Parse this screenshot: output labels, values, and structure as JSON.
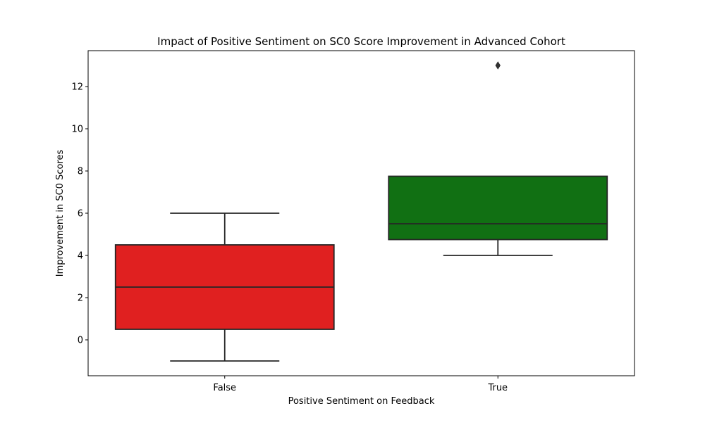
{
  "chart_data": {
    "type": "box",
    "title": "Impact of Positive Sentiment on SC0 Score Improvement in Advanced Cohort",
    "xlabel": "Positive Sentiment on Feedback",
    "ylabel": "Improvement in SC0 Scores",
    "categories": [
      "False",
      "True"
    ],
    "ylim": [
      -1.7,
      13.7
    ],
    "yticks": [
      0,
      2,
      4,
      6,
      8,
      10,
      12
    ],
    "grid": false,
    "boxes": [
      {
        "category": "False",
        "whisker_low": -1,
        "q1": 0.5,
        "median": 2.5,
        "q3": 4.5,
        "whisker_high": 6,
        "outliers": [],
        "color": "#e02020"
      },
      {
        "category": "True",
        "whisker_low": 4,
        "q1": 4.75,
        "median": 5.5,
        "q3": 7.75,
        "whisker_high": 7.75,
        "outliers": [
          13
        ],
        "color": "#117013"
      }
    ]
  }
}
